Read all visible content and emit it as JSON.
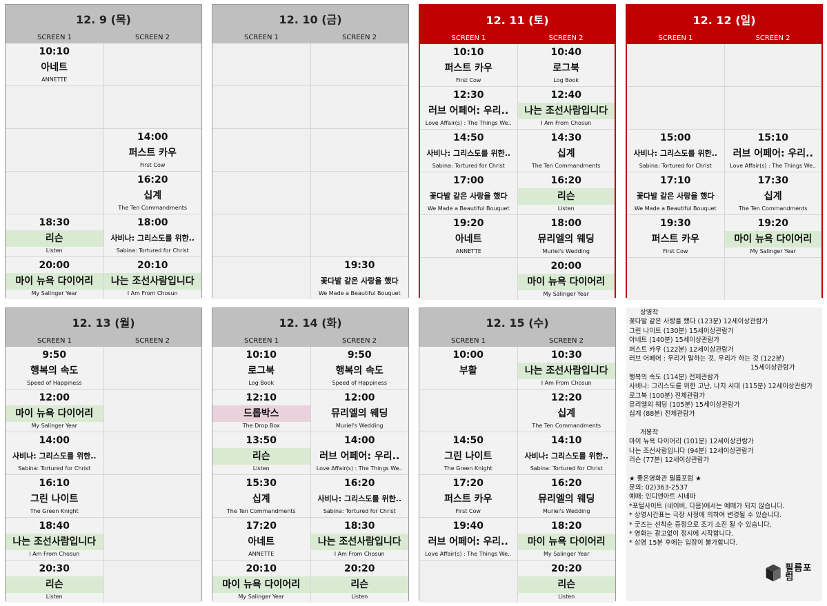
{
  "screen_labels": [
    "SCREEN 1",
    "SCREEN 2"
  ],
  "days": [
    {
      "date": "12. 9 (목)",
      "weekend": false,
      "col": 0,
      "row": 0,
      "cells": [
        {
          "time": "10:10",
          "title": "아네트",
          "en": "ANNETTE"
        },
        {},
        {},
        {},
        {},
        {
          "time": "14:00",
          "title": "퍼스트 카우",
          "en": "First Cow"
        },
        {},
        {
          "time": "16:20",
          "title": "십계",
          "en": "The Ten Commandments"
        },
        {
          "time": "18:30",
          "title": "리슨",
          "en": "Listen",
          "tag": "new"
        },
        {
          "time": "18:00",
          "title": "사비나: 그리스도를 위한..",
          "en": "Sabina: Tortured for Christ",
          "small": true
        },
        {
          "time": "20:00",
          "title": "마이 뉴욕 다이어리",
          "en": "My Salinger Year",
          "tag": "new"
        },
        {
          "time": "20:10",
          "title": "나는 조선사람입니다",
          "en": "I Am From Chosun",
          "tag": "new"
        }
      ]
    },
    {
      "date": "12. 10 (금)",
      "weekend": false,
      "col": 1,
      "row": 0,
      "cells": [
        {},
        {},
        {},
        {},
        {},
        {},
        {},
        {},
        {},
        {},
        {},
        {
          "time": "19:30",
          "title": "꽃다발 같은 사랑을 했다",
          "en": "We Made a Beautiful Bouquet",
          "small": true
        }
      ]
    },
    {
      "date": "12. 11 (토)",
      "weekend": true,
      "col": 2,
      "row": 0,
      "cells": [
        {
          "time": "10:10",
          "title": "퍼스트 카우",
          "en": "First Cow"
        },
        {
          "time": "10:40",
          "title": "로그북",
          "en": "Log Book"
        },
        {
          "time": "12:30",
          "title": "러브 어페어: 우리..",
          "en": "Love Affair(s) : The Things We.."
        },
        {
          "time": "12:40",
          "title": "나는 조선사람입니다",
          "en": "I Am From Chosun",
          "tag": "new"
        },
        {
          "time": "14:50",
          "title": "사비나: 그리스도를 위한..",
          "en": "Sabina: Tortured for Christ",
          "small": true
        },
        {
          "time": "14:30",
          "title": "십계",
          "en": "The Ten Commandments"
        },
        {
          "time": "17:00",
          "title": "꽃다발 같은 사랑을 했다",
          "en": "We Made a Beautiful Bouquet",
          "small": true
        },
        {
          "time": "16:20",
          "title": "리슨",
          "en": "Listen",
          "tag": "new"
        },
        {
          "time": "19:20",
          "title": "아네트",
          "en": "ANNETTE"
        },
        {
          "time": "18:00",
          "title": "뮤리엘의 웨딩",
          "en": "Muriel's Wedding"
        },
        {},
        {
          "time": "20:00",
          "title": "마이 뉴욕 다이어리",
          "en": "My Salinger Year",
          "tag": "new"
        }
      ]
    },
    {
      "date": "12. 12 (일)",
      "weekend": true,
      "col": 3,
      "row": 0,
      "cells": [
        {},
        {},
        {},
        {},
        {
          "time": "15:00",
          "title": "사비나: 그리스도를 위한..",
          "en": "Sabina: Tortured for Christ",
          "small": true
        },
        {
          "time": "15:10",
          "title": "러브 어페어: 우리..",
          "en": "Love Affair(s) : The Things We.."
        },
        {
          "time": "17:10",
          "title": "꽃다발 같은 사랑을 했다",
          "en": "We Made a Beautiful Bouquet",
          "small": true
        },
        {
          "time": "17:30",
          "title": "십계",
          "en": "The Ten Commandments"
        },
        {
          "time": "19:30",
          "title": "퍼스트 카우",
          "en": "First Cow"
        },
        {
          "time": "19:20",
          "title": "마이 뉴욕 다이어리",
          "en": "My Salinger Year",
          "tag": "new"
        },
        {},
        {}
      ]
    },
    {
      "date": "12. 13 (월)",
      "weekend": false,
      "col": 0,
      "row": 1,
      "cells": [
        {
          "time": "9:50",
          "title": "행복의 속도",
          "en": "Speed of Happiness"
        },
        {},
        {
          "time": "12:00",
          "title": "마이 뉴욕 다이어리",
          "en": "My Salinger Year",
          "tag": "new"
        },
        {},
        {
          "time": "14:00",
          "title": "사비나: 그리스도를 위한..",
          "en": "Sabina: Tortured for Christ",
          "small": true
        },
        {},
        {
          "time": "16:10",
          "title": "그린 나이트",
          "en": "The Green Knight"
        },
        {},
        {
          "time": "18:40",
          "title": "나는 조선사람입니다",
          "en": "I Am From Chosun",
          "tag": "new"
        },
        {},
        {
          "time": "20:30",
          "title": "리슨",
          "en": "Listen",
          "tag": "new"
        },
        {}
      ]
    },
    {
      "date": "12. 14 (화)",
      "weekend": false,
      "col": 1,
      "row": 1,
      "cells": [
        {
          "time": "10:10",
          "title": "로그북",
          "en": "Log Book"
        },
        {
          "time": "9:50",
          "title": "행복의 속도",
          "en": "Speed of Happiness"
        },
        {
          "time": "12:10",
          "title": "드롭박스",
          "en": "The Drop Box",
          "tag": "drop"
        },
        {
          "time": "12:00",
          "title": "뮤리엘의 웨딩",
          "en": "Muriel's Wedding"
        },
        {
          "time": "13:50",
          "title": "리슨",
          "en": "Listen",
          "tag": "new"
        },
        {
          "time": "14:00",
          "title": "러브 어페어: 우리..",
          "en": "Love Affair(s) : The Things We.."
        },
        {
          "time": "15:30",
          "title": "십계",
          "en": "The Ten Commandments"
        },
        {
          "time": "16:20",
          "title": "사비나: 그리스도를 위한..",
          "en": "Sabina: Tortured for Christ",
          "small": true
        },
        {
          "time": "17:20",
          "title": "아네트",
          "en": "ANNETTE"
        },
        {
          "time": "18:30",
          "title": "나는 조선사람입니다",
          "en": "I Am From Chosun",
          "tag": "new"
        },
        {
          "time": "20:10",
          "title": "마이 뉴욕 다이어리",
          "en": "My Salinger Year",
          "tag": "new"
        },
        {
          "time": "20:20",
          "title": "리슨",
          "en": "Listen",
          "tag": "new"
        }
      ]
    },
    {
      "date": "12. 15 (수)",
      "weekend": false,
      "col": 2,
      "row": 1,
      "cells": [
        {
          "time": "10:00",
          "title": "부활",
          "en": ""
        },
        {
          "time": "10:30",
          "title": "나는 조선사람입니다",
          "en": "I Am From Chosun",
          "tag": "new"
        },
        {},
        {
          "time": "12:20",
          "title": "십계",
          "en": "The Ten Commandments"
        },
        {
          "time": "14:50",
          "title": "그린 나이트",
          "en": "The Green Knight"
        },
        {
          "time": "14:10",
          "title": "사비나: 그리스도를 위한..",
          "en": "Sabina: Tortured for Christ",
          "small": true
        },
        {
          "time": "17:20",
          "title": "퍼스트 카우",
          "en": "First Cow"
        },
        {
          "time": "16:20",
          "title": "뮤리엘의 웨딩",
          "en": "Muriel's Wedding"
        },
        {
          "time": "19:40",
          "title": "러브 어페어: 우리..",
          "en": "Love Affair(s) : The Things We.."
        },
        {
          "time": "18:20",
          "title": "마이 뉴욕 다이어리",
          "en": "My Salinger Year",
          "tag": "new"
        },
        {},
        {
          "time": "20:20",
          "title": "리슨",
          "en": "Listen",
          "tag": "new"
        }
      ]
    }
  ],
  "info": {
    "now_heading": "상영작",
    "now_list": [
      "꽃다발 같은 사랑을 했다 (123분) 12세이상관람가",
      "그린 나이트 (130분) 15세이상관람가",
      "아네트 (140분) 15세이상관람가",
      "퍼스트 카우 (122분) 12세이상관람가",
      "러브 어페어 : 우리가 말하는 것, 우리가 하는 것 (122분)",
      "15세이상관람가",
      "행복의 속도 (114분) 전체관람가",
      "사비나: 그리스도를 위한 고난, 나치 시대 (115분) 12세이상관람가",
      "로그북 (100분) 전체관람가",
      "뮤리엘의 웨딩 (105분) 15세이상관람가",
      "십계 (88분) 전체관람가"
    ],
    "new_heading": "개봉작",
    "new_list": [
      "마이 뉴욕 다이어리 (101분) 12세이상관람가",
      "나는 조선사람입니다 (94분) 12세이상관람가",
      "리슨 (77분) 12세이상관람가"
    ],
    "theater": "★ 좋은영화관 필름포럼 ★",
    "contact": "문의: 02)363-2537",
    "booking": "예매: 인디앤아트 시네마",
    "notes": [
      "*포털사이트 (네이버, 다음)에서는 예매가 되지 않습니다.",
      "* 상영시간표는 극장 사정에 의하여 변경될 수 있습니다.",
      "* 굿즈는 선착순 증정으로 조기 소진 될 수 있습니다.",
      "* 영화는 광고없이 정시에 시작합니다.",
      "* 상영 15분 후에는 입장이 불가합니다."
    ],
    "logo_text": "필름포럼"
  }
}
